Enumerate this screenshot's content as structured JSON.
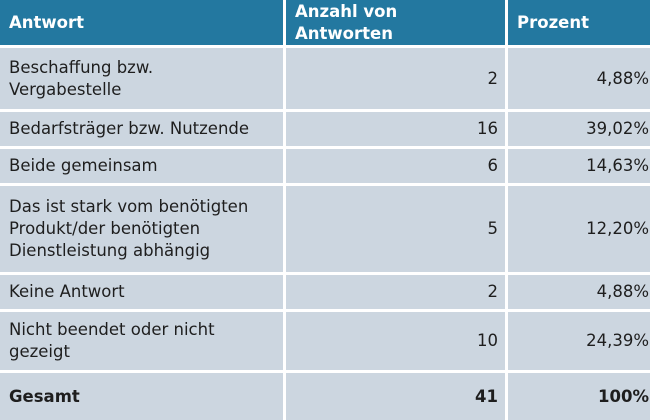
{
  "table": {
    "headers": [
      "Antwort",
      "Anzahl von Antworten",
      "Prozent"
    ],
    "rows": [
      {
        "answer": "Beschaffung bzw.\nVergabestelle",
        "count": "2",
        "percent": "4,88%"
      },
      {
        "answer": "Bedarfsträger bzw. Nutzende",
        "count": "16",
        "percent": "39,02%"
      },
      {
        "answer": "Beide gemeinsam",
        "count": "6",
        "percent": "14,63%"
      },
      {
        "answer": "Das ist stark vom benötigten\nProdukt/der benötigten\nDienstleistung abhängig",
        "count": "5",
        "percent": "12,20%"
      },
      {
        "answer": "Keine Antwort",
        "count": "2",
        "percent": "4,88%"
      },
      {
        "answer": "Nicht beendet oder nicht\ngezeigt",
        "count": "10",
        "percent": "24,39%"
      }
    ],
    "total": {
      "label": "Gesamt",
      "count": "41",
      "percent": "100%"
    }
  },
  "colors": {
    "header_bg": "#2378a0",
    "row_bg": "#ccd6e0",
    "text": "#1e1e1e"
  }
}
